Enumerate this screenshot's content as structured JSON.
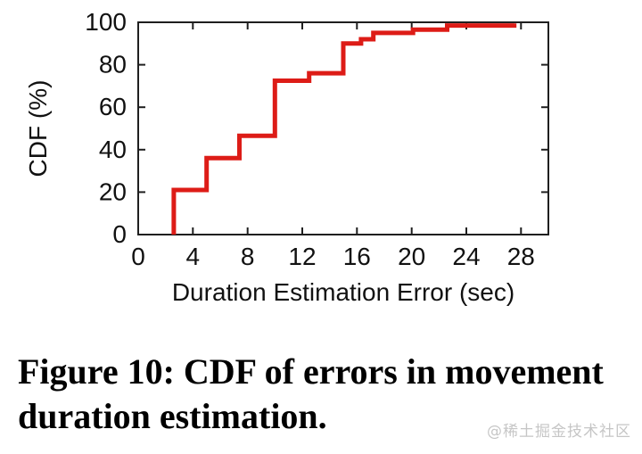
{
  "chart_data": {
    "type": "line",
    "subtype": "cdf-step",
    "title": "",
    "xlabel": "Duration Estimation Error (sec)",
    "ylabel": "CDF (%)",
    "xlim": [
      0,
      30
    ],
    "ylim": [
      0,
      100
    ],
    "x_ticks": [
      0,
      4,
      8,
      12,
      16,
      20,
      24,
      28
    ],
    "y_ticks": [
      0,
      20,
      40,
      60,
      80,
      100
    ],
    "grid": false,
    "legend": false,
    "line_color": "#dd1c17",
    "axis_color": "#1f1f1f",
    "points": [
      {
        "x": 2.6,
        "y": 0
      },
      {
        "x": 2.6,
        "y": 21
      },
      {
        "x": 5.0,
        "y": 21
      },
      {
        "x": 5.0,
        "y": 36
      },
      {
        "x": 7.4,
        "y": 36
      },
      {
        "x": 7.4,
        "y": 46.5
      },
      {
        "x": 10.0,
        "y": 46.5
      },
      {
        "x": 10.0,
        "y": 72.5
      },
      {
        "x": 12.5,
        "y": 72.5
      },
      {
        "x": 12.5,
        "y": 76
      },
      {
        "x": 15.0,
        "y": 76
      },
      {
        "x": 15.0,
        "y": 90
      },
      {
        "x": 16.3,
        "y": 90
      },
      {
        "x": 16.3,
        "y": 92
      },
      {
        "x": 17.2,
        "y": 92
      },
      {
        "x": 17.2,
        "y": 95
      },
      {
        "x": 20.1,
        "y": 95
      },
      {
        "x": 20.1,
        "y": 96.5
      },
      {
        "x": 22.6,
        "y": 96.5
      },
      {
        "x": 22.6,
        "y": 98.5
      },
      {
        "x": 27.5,
        "y": 98.5
      },
      {
        "x": 27.5,
        "y": 99.5
      }
    ]
  },
  "caption": {
    "lines": [
      "Figure 10: CDF of errors in movement",
      "duration estimation."
    ]
  },
  "watermark": {
    "text": "@稀土掘金技术社区",
    "color": "#c6c6c6"
  }
}
